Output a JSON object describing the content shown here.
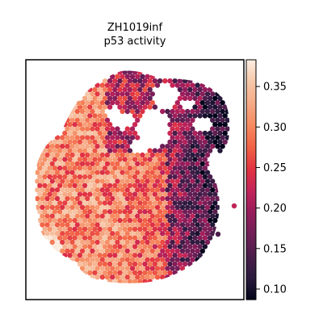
{
  "chart_data": {
    "type": "scatter",
    "subtype": "spatial-hexbin",
    "title": "ZH1019inf",
    "subtitle": "p53 activity",
    "xlabel": "",
    "ylabel": "",
    "axis_ticks_shown": false,
    "grid": false,
    "colormap": "rocket",
    "colormap_stops": [
      "#03051a",
      "#2b1b3f",
      "#4c1d4b",
      "#701f57",
      "#961c5b",
      "#c3245a",
      "#e13342",
      "#f16145",
      "#f6895f",
      "#f6a984",
      "#f6c6a7",
      "#faebdd"
    ],
    "colorbar": {
      "vmin": 0.087,
      "vmax": 0.383,
      "ticks": [
        0.1,
        0.15,
        0.2,
        0.25,
        0.3,
        0.35
      ],
      "tick_labels": [
        "0.10",
        "0.15",
        "0.20",
        "0.25",
        "0.30",
        "0.35"
      ]
    },
    "value_regions": [
      {
        "region": "left and lower-center tissue",
        "value_range": [
          0.28,
          0.36
        ]
      },
      {
        "region": "right lobe",
        "value_range": [
          0.14,
          0.24
        ]
      },
      {
        "region": "upper-right fragmented lobe",
        "value_range": [
          0.1,
          0.3
        ]
      },
      {
        "region": "lower-left edge",
        "value_range": [
          0.33,
          0.37
        ]
      }
    ]
  }
}
